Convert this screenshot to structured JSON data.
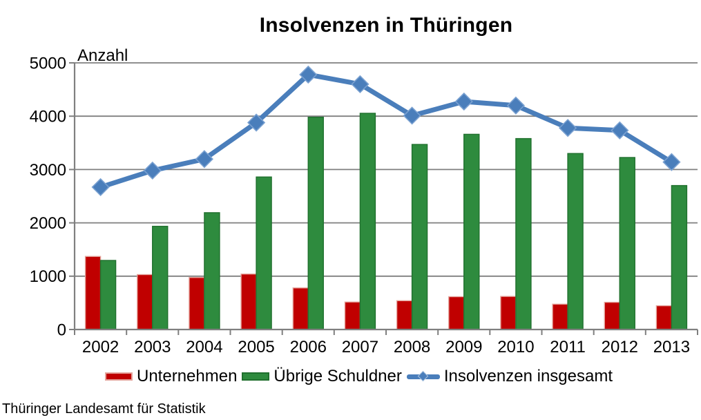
{
  "chart_data": {
    "type": "combo-bar-line",
    "title": "Insolvenzen in Thüringen",
    "ylabel": "Anzahl",
    "categories": [
      "2002",
      "2003",
      "2004",
      "2005",
      "2006",
      "2007",
      "2008",
      "2009",
      "2010",
      "2011",
      "2012",
      "2013"
    ],
    "series": [
      {
        "name": "Unternehmen",
        "type": "bar",
        "color": "#c00000",
        "border_color": "#e4a49c",
        "values": [
          1370,
          1030,
          975,
          1040,
          780,
          515,
          540,
          615,
          620,
          475,
          510,
          445
        ]
      },
      {
        "name": "Übrige Schuldner",
        "type": "bar",
        "color": "#2e8b3e",
        "border_color": "#20702e",
        "values": [
          1295,
          1935,
          2190,
          2860,
          3980,
          4055,
          3470,
          3660,
          3580,
          3300,
          3225,
          2700
        ]
      },
      {
        "name": "Insolvenzen insgesamt",
        "type": "line",
        "color": "#4a7ebb",
        "border_color": "#7aa1d1",
        "values": [
          2670,
          2980,
          3195,
          3880,
          4780,
          4600,
          4010,
          4275,
          4200,
          3780,
          3735,
          3140
        ]
      }
    ],
    "ylim": [
      0,
      5000
    ],
    "ytick_step": 1000,
    "yticks": [
      "0",
      "1000",
      "2000",
      "3000",
      "4000",
      "5000"
    ],
    "grid": true,
    "legend_position": "bottom",
    "axis_color": "#7f7f7f",
    "background": "#ffffff"
  },
  "footer": {
    "source": "Thüringer Landesamt für Statistik"
  }
}
